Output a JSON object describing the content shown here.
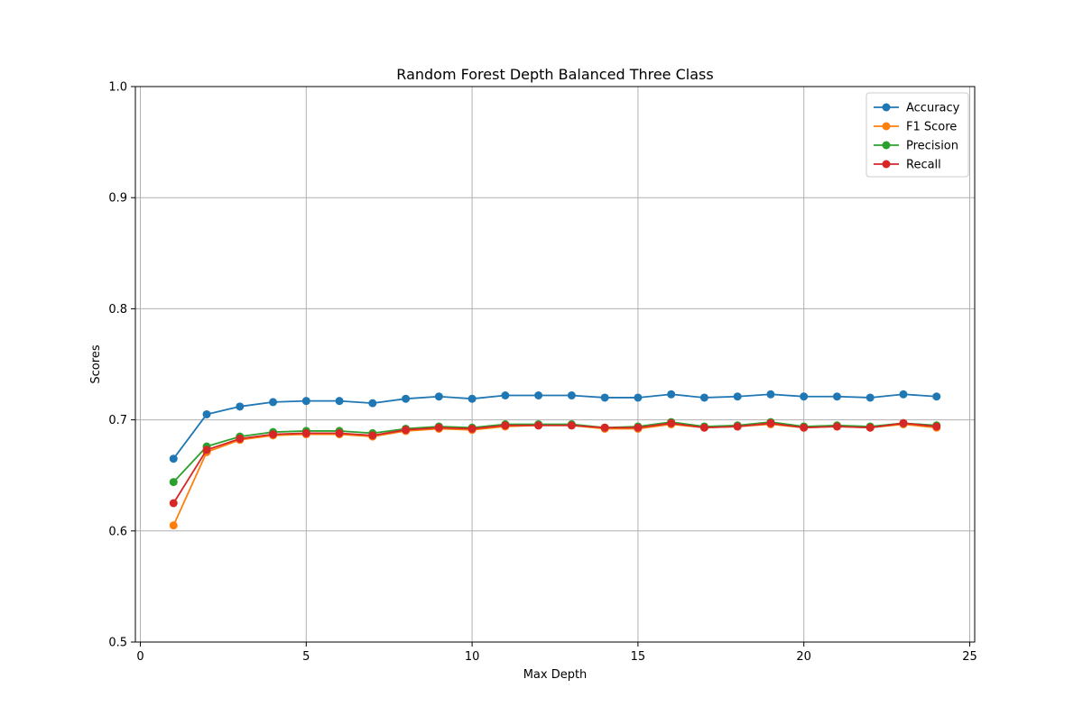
{
  "chart_data": {
    "type": "line",
    "title": "Random Forest Depth Balanced Three Class",
    "xlabel": "Max Depth",
    "ylabel": "Scores",
    "xlim": [
      -0.15,
      25.15
    ],
    "ylim": [
      0.5,
      1.0
    ],
    "xticks": [
      0,
      5,
      10,
      15,
      20,
      25
    ],
    "yticks": [
      0.5,
      0.6,
      0.7,
      0.8,
      0.9,
      1.0
    ],
    "xtick_labels": [
      "0",
      "5",
      "10",
      "15",
      "20",
      "25"
    ],
    "ytick_labels": [
      "0.5",
      "0.6",
      "0.7",
      "0.8",
      "0.9",
      "1.0"
    ],
    "grid": true,
    "legend_position": "top-right",
    "x": [
      1,
      2,
      3,
      4,
      5,
      6,
      7,
      8,
      9,
      10,
      11,
      12,
      13,
      14,
      15,
      16,
      17,
      18,
      19,
      20,
      21,
      22,
      23,
      24
    ],
    "series": [
      {
        "name": "Accuracy",
        "color": "#1f77b4",
        "values": [
          0.665,
          0.705,
          0.712,
          0.716,
          0.717,
          0.717,
          0.715,
          0.719,
          0.721,
          0.719,
          0.722,
          0.722,
          0.722,
          0.72,
          0.72,
          0.723,
          0.72,
          0.721,
          0.723,
          0.721,
          0.721,
          0.72,
          0.723,
          0.721
        ]
      },
      {
        "name": "F1 Score",
        "color": "#ff7f0e",
        "values": [
          0.605,
          0.671,
          0.682,
          0.686,
          0.687,
          0.687,
          0.685,
          0.69,
          0.692,
          0.691,
          0.694,
          0.695,
          0.695,
          0.692,
          0.692,
          0.696,
          0.693,
          0.694,
          0.696,
          0.693,
          0.694,
          0.693,
          0.696,
          0.693
        ]
      },
      {
        "name": "Precision",
        "color": "#2ca02c",
        "values": [
          0.644,
          0.676,
          0.685,
          0.689,
          0.69,
          0.69,
          0.688,
          0.692,
          0.694,
          0.693,
          0.696,
          0.696,
          0.696,
          0.693,
          0.694,
          0.698,
          0.694,
          0.695,
          0.698,
          0.694,
          0.695,
          0.694,
          0.697,
          0.695
        ]
      },
      {
        "name": "Recall",
        "color": "#d62728",
        "values": [
          0.625,
          0.673,
          0.683,
          0.687,
          0.688,
          0.688,
          0.686,
          0.691,
          0.693,
          0.692,
          0.695,
          0.695,
          0.695,
          0.693,
          0.693,
          0.697,
          0.693,
          0.694,
          0.697,
          0.693,
          0.694,
          0.693,
          0.697,
          0.694
        ]
      }
    ]
  }
}
